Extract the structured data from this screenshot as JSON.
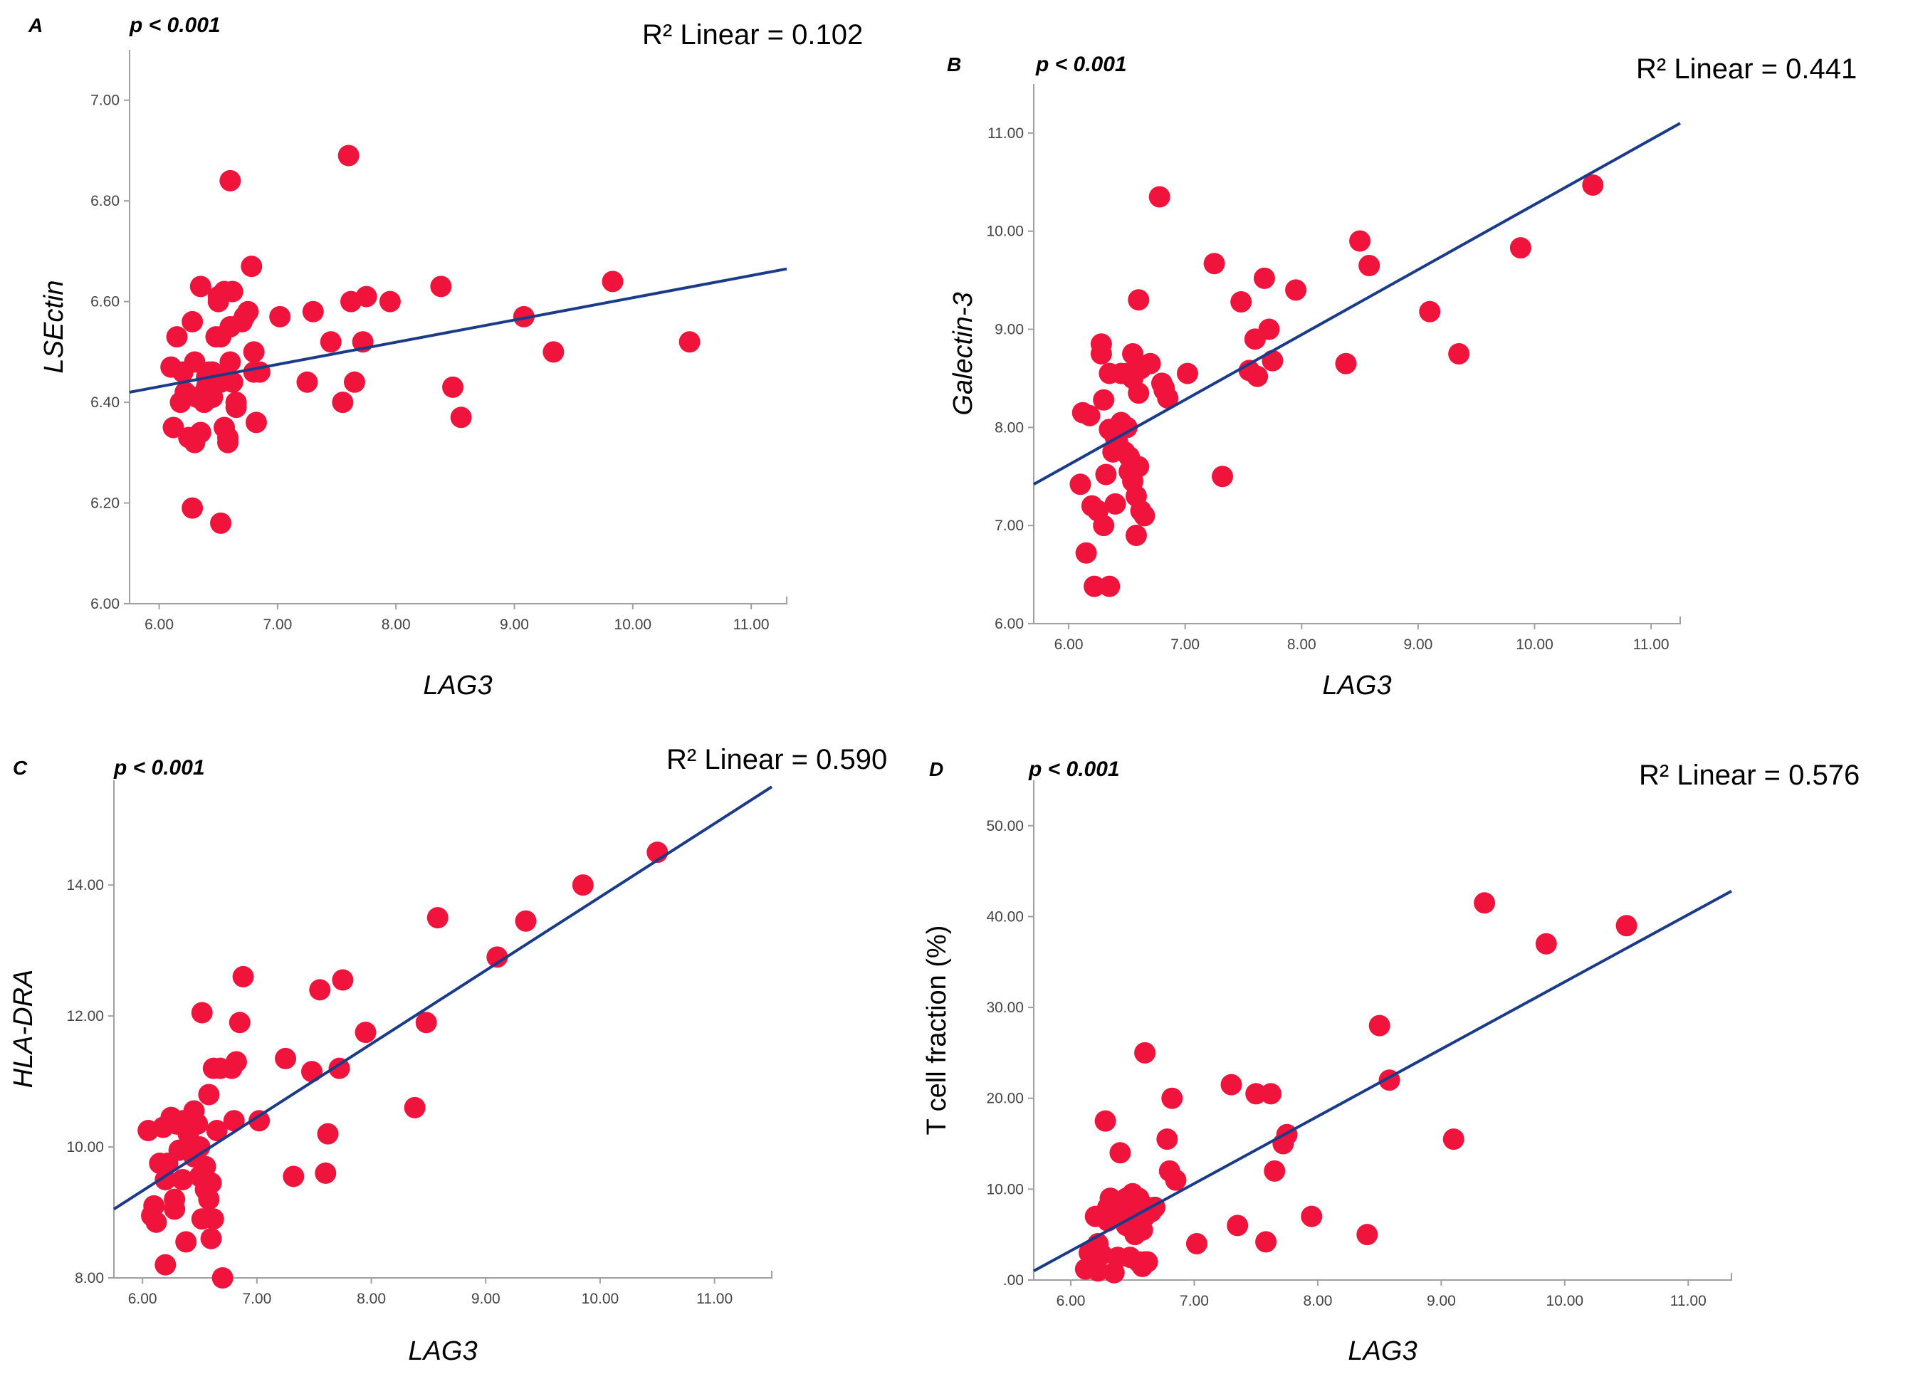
{
  "chart_data": [
    {
      "type": "scatter",
      "panel": "A",
      "p_label": "p < 0.001",
      "r2_label": "R² Linear = 0.102",
      "xlabel": "LAG3",
      "ylabel": "LSEctin",
      "ylabel_italic": true,
      "xlim": [
        5.75,
        11.3
      ],
      "ylim": [
        6.0,
        7.1
      ],
      "xticks": [
        6,
        7,
        8,
        9,
        10,
        11
      ],
      "xtick_labels": [
        "6.00",
        "7.00",
        "8.00",
        "9.00",
        "10.00",
        "11.00"
      ],
      "yticks": [
        6.0,
        6.2,
        6.4,
        6.6,
        6.8,
        7.0
      ],
      "ytick_labels": [
        "6.00",
        "6.20",
        "6.40",
        "6.60",
        "6.80",
        "7.00"
      ],
      "fit": {
        "x": [
          5.75,
          11.3
        ],
        "y": [
          6.42,
          6.665
        ]
      },
      "x": [
        6.1,
        6.12,
        6.15,
        6.18,
        6.2,
        6.22,
        6.25,
        6.28,
        6.3,
        6.3,
        6.32,
        6.35,
        6.35,
        6.38,
        6.4,
        6.4,
        6.42,
        6.45,
        6.45,
        6.48,
        6.5,
        6.5,
        6.52,
        6.52,
        6.55,
        6.55,
        6.55,
        6.58,
        6.58,
        6.6,
        6.6,
        6.6,
        6.62,
        6.62,
        6.65,
        6.65,
        6.7,
        6.72,
        6.75,
        6.78,
        6.8,
        6.8,
        6.82,
        6.85,
        7.02,
        7.25,
        7.3,
        7.45,
        7.55,
        7.6,
        7.62,
        7.65,
        7.72,
        7.75,
        7.95,
        8.38,
        8.48,
        8.55,
        9.08,
        9.33,
        9.83,
        10.48,
        6.28,
        6.52
      ],
      "y": [
        6.47,
        6.35,
        6.53,
        6.4,
        6.46,
        6.42,
        6.33,
        6.56,
        6.32,
        6.48,
        6.41,
        6.63,
        6.34,
        6.4,
        6.45,
        6.43,
        6.46,
        6.46,
        6.41,
        6.53,
        6.61,
        6.6,
        6.44,
        6.53,
        6.45,
        6.35,
        6.62,
        6.33,
        6.32,
        6.84,
        6.48,
        6.55,
        6.44,
        6.62,
        6.39,
        6.4,
        6.56,
        6.57,
        6.58,
        6.67,
        6.5,
        6.46,
        6.36,
        6.46,
        6.57,
        6.44,
        6.58,
        6.52,
        6.4,
        6.89,
        6.6,
        6.44,
        6.52,
        6.61,
        6.6,
        6.63,
        6.43,
        6.37,
        6.57,
        6.5,
        6.64,
        6.52,
        6.19,
        6.16
      ]
    },
    {
      "type": "scatter",
      "panel": "B",
      "p_label": "p < 0.001",
      "r2_label": "R² Linear = 0.441",
      "xlabel": "LAG3",
      "ylabel": "Galectin-3",
      "ylabel_italic": true,
      "xlim": [
        5.7,
        11.25
      ],
      "ylim": [
        6.0,
        11.5
      ],
      "xticks": [
        6,
        7,
        8,
        9,
        10,
        11
      ],
      "xtick_labels": [
        "6.00",
        "7.00",
        "8.00",
        "9.00",
        "10.00",
        "11.00"
      ],
      "yticks": [
        6,
        7,
        8,
        9,
        10,
        11
      ],
      "ytick_labels": [
        "6.00",
        "7.00",
        "8.00",
        "9.00",
        "10.00",
        "11.00"
      ],
      "fit": {
        "x": [
          5.7,
          11.25
        ],
        "y": [
          7.42,
          11.1
        ]
      },
      "x": [
        6.1,
        6.12,
        6.15,
        6.18,
        6.2,
        6.22,
        6.25,
        6.28,
        6.28,
        6.3,
        6.32,
        6.35,
        6.35,
        6.38,
        6.4,
        6.4,
        6.42,
        6.45,
        6.45,
        6.48,
        6.5,
        6.5,
        6.52,
        6.52,
        6.55,
        6.55,
        6.55,
        6.58,
        6.58,
        6.6,
        6.6,
        6.62,
        6.62,
        6.65,
        6.7,
        6.78,
        6.8,
        6.82,
        6.85,
        7.02,
        7.25,
        7.32,
        7.48,
        7.55,
        7.6,
        7.62,
        7.68,
        7.72,
        7.75,
        7.95,
        8.38,
        8.5,
        8.58,
        9.1,
        9.35,
        9.88,
        10.5,
        6.3,
        6.35,
        6.6,
        6.82
      ],
      "y": [
        7.42,
        8.15,
        6.72,
        8.12,
        7.2,
        6.38,
        7.15,
        8.85,
        8.75,
        8.28,
        7.52,
        7.98,
        8.55,
        7.75,
        7.22,
        7.9,
        7.85,
        8.55,
        8.05,
        7.75,
        8.55,
        8.0,
        7.7,
        7.55,
        8.75,
        8.5,
        7.45,
        7.3,
        6.9,
        8.35,
        9.3,
        8.6,
        7.15,
        7.1,
        8.65,
        10.35,
        8.45,
        8.4,
        8.3,
        8.55,
        9.67,
        7.5,
        9.28,
        8.58,
        8.9,
        8.52,
        9.52,
        9.0,
        8.68,
        9.4,
        8.65,
        9.9,
        9.65,
        9.18,
        8.75,
        9.83,
        10.47,
        7.0,
        6.38,
        7.6,
        8.38
      ]
    },
    {
      "type": "scatter",
      "panel": "C",
      "p_label": "p < 0.001",
      "r2_label": "R² Linear = 0.590",
      "xlabel": "LAG3",
      "ylabel": "HLA-DRA",
      "ylabel_italic": true,
      "xlim": [
        5.75,
        11.5
      ],
      "ylim": [
        8.0,
        15.6
      ],
      "xticks": [
        6,
        7,
        8,
        9,
        10,
        11
      ],
      "xtick_labels": [
        "6.00",
        "7.00",
        "8.00",
        "9.00",
        "10.00",
        "11.00"
      ],
      "yticks": [
        8,
        10,
        12,
        14
      ],
      "ytick_labels": [
        "8.00",
        "10.00",
        "12.00",
        "14.00"
      ],
      "fit": {
        "x": [
          5.75,
          11.5
        ],
        "y": [
          9.05,
          15.5
        ]
      },
      "x": [
        6.05,
        6.08,
        6.1,
        6.12,
        6.15,
        6.18,
        6.2,
        6.22,
        6.25,
        6.28,
        6.28,
        6.3,
        6.32,
        6.35,
        6.35,
        6.38,
        6.4,
        6.42,
        6.45,
        6.45,
        6.48,
        6.5,
        6.5,
        6.52,
        6.52,
        6.55,
        6.55,
        6.58,
        6.58,
        6.6,
        6.6,
        6.62,
        6.62,
        6.65,
        6.7,
        6.78,
        6.8,
        6.82,
        6.85,
        6.88,
        7.02,
        7.25,
        7.32,
        7.48,
        7.55,
        7.6,
        7.62,
        7.72,
        7.75,
        7.95,
        8.38,
        8.48,
        8.58,
        9.1,
        9.35,
        9.85,
        10.5,
        6.2,
        6.68
      ],
      "y": [
        10.25,
        8.95,
        9.1,
        8.85,
        9.75,
        10.3,
        8.2,
        9.75,
        10.45,
        9.05,
        9.2,
        10.35,
        9.95,
        9.5,
        10.4,
        8.55,
        10.2,
        10.05,
        10.55,
        9.85,
        10.35,
        10.0,
        9.55,
        12.05,
        8.9,
        9.7,
        9.35,
        9.2,
        10.8,
        8.6,
        9.45,
        11.2,
        8.9,
        10.25,
        8.0,
        11.2,
        10.4,
        11.3,
        11.9,
        12.6,
        10.4,
        11.35,
        9.55,
        11.15,
        12.4,
        9.6,
        10.2,
        11.2,
        12.55,
        11.75,
        10.6,
        11.9,
        13.5,
        12.9,
        13.45,
        14.0,
        14.5,
        9.5,
        11.2
      ]
    },
    {
      "type": "scatter",
      "panel": "D",
      "p_label": "p < 0.001",
      "r2_label": "R² Linear = 0.576",
      "xlabel": "LAG3",
      "ylabel": "T cell fraction (%)",
      "ylabel_italic": false,
      "xlim": [
        5.7,
        11.35
      ],
      "ylim": [
        0,
        55
      ],
      "xticks": [
        6,
        7,
        8,
        9,
        10,
        11
      ],
      "xtick_labels": [
        "6.00",
        "7.00",
        "8.00",
        "9.00",
        "10.00",
        "11.00"
      ],
      "yticks": [
        0,
        10,
        20,
        30,
        40,
        50
      ],
      "ytick_labels": [
        ".00",
        "10.00",
        "20.00",
        "30.00",
        "40.00",
        "50.00"
      ],
      "fit": {
        "x": [
          5.7,
          11.35
        ],
        "y": [
          1.0,
          42.8
        ]
      },
      "x": [
        6.12,
        6.15,
        6.18,
        6.2,
        6.22,
        6.25,
        6.28,
        6.3,
        6.3,
        6.32,
        6.35,
        6.38,
        6.4,
        6.4,
        6.42,
        6.45,
        6.45,
        6.48,
        6.5,
        6.5,
        6.52,
        6.52,
        6.55,
        6.55,
        6.58,
        6.58,
        6.6,
        6.6,
        6.62,
        6.62,
        6.65,
        6.78,
        6.8,
        6.82,
        6.85,
        7.02,
        7.3,
        7.35,
        7.5,
        7.58,
        7.62,
        7.65,
        7.72,
        7.75,
        7.95,
        8.4,
        8.5,
        8.58,
        9.1,
        9.35,
        9.85,
        10.5,
        6.22,
        6.38,
        6.55,
        6.6,
        6.45,
        6.68
      ],
      "y": [
        1.2,
        3.0,
        2.2,
        7.0,
        4.0,
        2.8,
        17.5,
        8.0,
        6.5,
        9.0,
        0.8,
        7.5,
        14.0,
        8.5,
        8.0,
        9.0,
        6.0,
        2.5,
        9.5,
        8.5,
        5.0,
        7.0,
        2.0,
        8.0,
        1.5,
        5.5,
        25.0,
        7.0,
        2.0,
        8.0,
        7.5,
        15.5,
        12.0,
        20.0,
        11.0,
        4.0,
        21.5,
        6.0,
        20.5,
        4.2,
        20.5,
        12.0,
        15.0,
        16.0,
        7.0,
        5.0,
        28.0,
        22.0,
        15.5,
        41.5,
        37.0,
        39.0,
        1.0,
        2.5,
        9.0,
        2.0,
        8.5,
        8.0
      ]
    }
  ]
}
